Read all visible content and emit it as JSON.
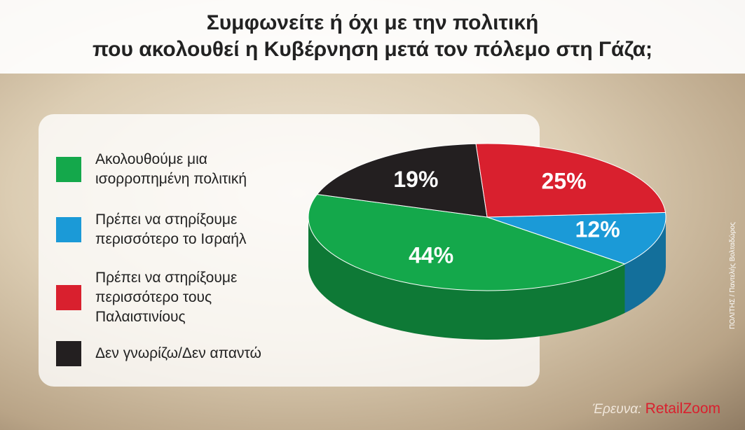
{
  "chart_data": {
    "type": "pie",
    "title": [
      "Συμφωνείτε ή όχι με την πολιτική",
      "που ακολουθεί η Κυβέρνηση μετά τον πόλεμο στη Γάζα;"
    ],
    "categories": [
      "Ακολουθούμε μια ισορροπημένη πολιτική",
      "Πρέπει να στηρίξουμε περισσότερο το Ισραήλ",
      "Πρέπει να στηρίξουμε περισσότερο τους Παλαιστινίους",
      "Δεν γνωρίζω/Δεν απαντώ"
    ],
    "values": [
      44,
      12,
      25,
      19
    ],
    "value_labels": [
      "44%",
      "12%",
      "25%",
      "19%"
    ],
    "colors": [
      "#14a84b",
      "#1b9ad7",
      "#d9202e",
      "#231f20"
    ],
    "source_label": "Έρευνα:",
    "source": "RetailZoom",
    "credit": "ΠΟΛΙΤΗΣ / Παντελής Βολταδώρος"
  }
}
